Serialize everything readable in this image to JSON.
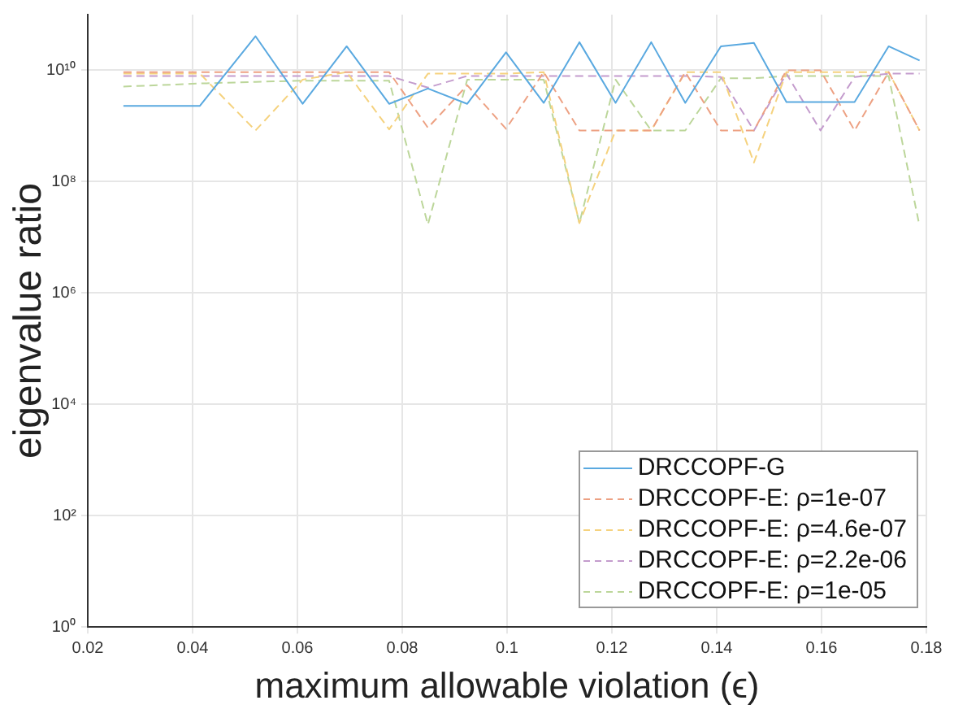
{
  "chart_data": {
    "type": "line",
    "xlabel": "maximum allowable violation (ϵ)",
    "ylabel": "eigenvalue ratio",
    "x": [
      0.0268,
      0.0414,
      0.052,
      0.061,
      0.0694,
      0.0775,
      0.0849,
      0.0924,
      0.0998,
      0.107,
      0.1138,
      0.1207,
      0.1275,
      0.134,
      0.1408,
      0.1471,
      0.1533,
      0.1598,
      0.1663,
      0.1728,
      0.1787
    ],
    "series": [
      {
        "name": "DRCCOPF-G",
        "color": "#5aa9e0",
        "line_style": "solid",
        "values": [
          2300000000.0,
          2300000000.0,
          41000000000.0,
          2500000000.0,
          27000000000.0,
          2500000000.0,
          4700000000.0,
          2500000000.0,
          21000000000.0,
          2600000000.0,
          32000000000.0,
          2600000000.0,
          32000000000.0,
          2600000000.0,
          27000000000.0,
          31000000000.0,
          2700000000.0,
          2700000000.0,
          2700000000.0,
          27000000000.0,
          15000000000.0
        ]
      },
      {
        "name": "DRCCOPF-E: ρ=1e-07",
        "color": "#eda183",
        "line_style": "dashed",
        "values": [
          9300000000.0,
          9300000000.0,
          9300000000.0,
          9300000000.0,
          9300000000.0,
          9300000000.0,
          930000000.0,
          5400000000.0,
          890000000.0,
          9300000000.0,
          830000000.0,
          830000000.0,
          830000000.0,
          9300000000.0,
          830000000.0,
          830000000.0,
          10000000000.0,
          10000000000.0,
          830000000.0,
          9300000000.0,
          830000000.0
        ]
      },
      {
        "name": "DRCCOPF-E: ρ=4.6e-07",
        "color": "#f5d27e",
        "line_style": "dashed",
        "values": [
          8700000000.0,
          8700000000.0,
          830000000.0,
          6800000000.0,
          9300000000.0,
          870000000.0,
          8700000000.0,
          8700000000.0,
          8700000000.0,
          9300000000.0,
          18000000.0,
          830000000.0,
          830000000.0,
          9300000000.0,
          9300000000.0,
          220000000.0,
          9300000000.0,
          9300000000.0,
          9300000000.0,
          9300000000.0,
          830000000.0
        ]
      },
      {
        "name": "DRCCOPF-E: ρ=2.2e-06",
        "color": "#c49ccd",
        "line_style": "dashed",
        "values": [
          7900000000.0,
          7900000000.0,
          7900000000.0,
          7900000000.0,
          7900000000.0,
          7900000000.0,
          4900000000.0,
          7900000000.0,
          7900000000.0,
          7900000000.0,
          7900000000.0,
          7900000000.0,
          7900000000.0,
          7900000000.0,
          7600000000.0,
          830000000.0,
          8700000000.0,
          830000000.0,
          7600000000.0,
          8700000000.0,
          8700000000.0
        ]
      },
      {
        "name": "DRCCOPF-E: ρ=1e-05",
        "color": "#bcd69a",
        "line_style": "dashed",
        "values": [
          5100000000.0,
          5800000000.0,
          6200000000.0,
          6500000000.0,
          6500000000.0,
          6500000000.0,
          17000000.0,
          6800000000.0,
          6800000000.0,
          6800000000.0,
          18000000.0,
          6800000000.0,
          830000000.0,
          830000000.0,
          7200000000.0,
          7200000000.0,
          7900000000.0,
          7900000000.0,
          7900000000.0,
          7900000000.0,
          16000000.0
        ]
      }
    ],
    "xlim": [
      0.02,
      0.18
    ],
    "xticks": [
      0.02,
      0.04,
      0.06,
      0.08,
      0.1,
      0.12,
      0.14,
      0.16,
      0.18
    ],
    "ylim": [
      1,
      100000000000.0
    ],
    "yticks": [
      {
        "value": 1,
        "label": "10⁰"
      },
      {
        "value": 100,
        "label": "10²"
      },
      {
        "value": 10000,
        "label": "10⁴"
      },
      {
        "value": 1000000,
        "label": "10⁶"
      },
      {
        "value": 100000000,
        "label": "10⁸"
      },
      {
        "value": 10000000000,
        "label": "10¹⁰"
      }
    ],
    "log": "y",
    "grid": true,
    "legend": "bottom right",
    "marker": "none"
  }
}
